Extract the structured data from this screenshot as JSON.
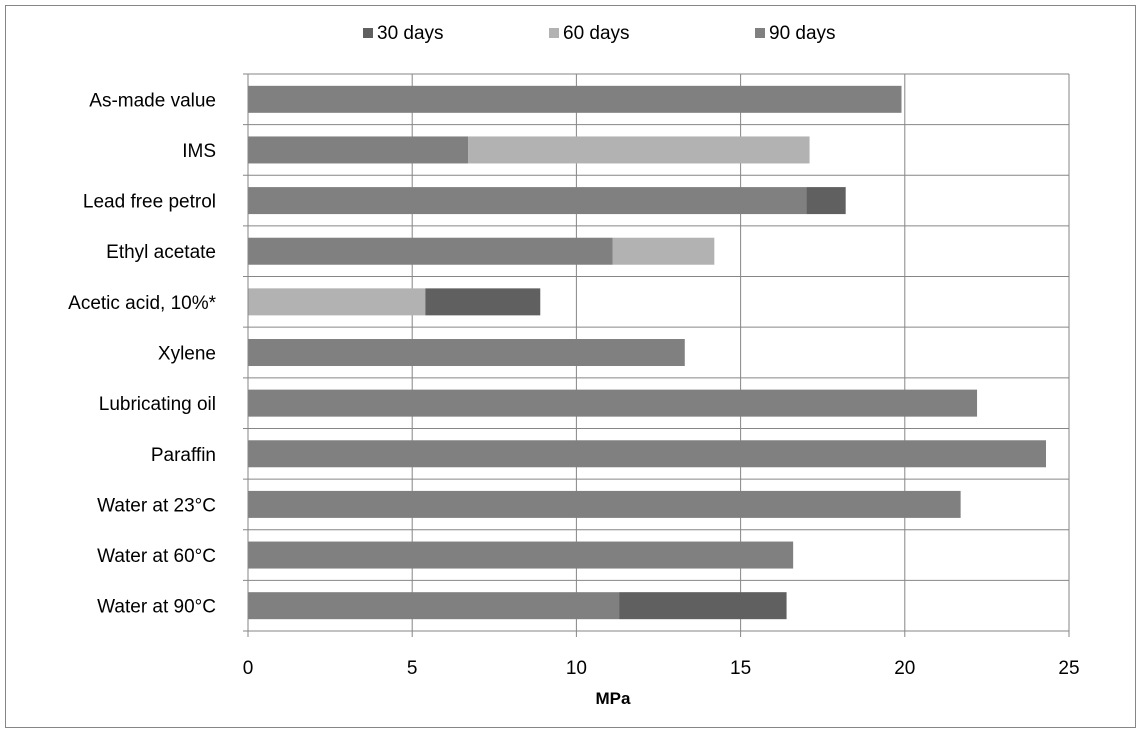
{
  "chart_data": {
    "type": "bar",
    "orientation": "horizontal",
    "stacked": true,
    "title": "",
    "xlabel": "MPa",
    "ylabel": "",
    "xlim": [
      0,
      25
    ],
    "x_ticks": [
      "0",
      "5",
      "10",
      "15",
      "20",
      "25"
    ],
    "grid": true,
    "legend_position": "top",
    "categories": [
      "As-made value",
      "IMS",
      "Lead free petrol",
      "Ethyl acetate",
      "Acetic acid, 10%*",
      "Xylene",
      "Lubricating oil",
      "Paraffin",
      "Water at 23°C",
      "Water at 60°C",
      "Water at 90°C"
    ],
    "bars": [
      [
        {
          "series": 2,
          "value": 19.9
        }
      ],
      [
        {
          "series": 2,
          "value": 6.7
        },
        {
          "series": 1,
          "value": 10.4
        }
      ],
      [
        {
          "series": 2,
          "value": 17.0
        },
        {
          "series": 0,
          "value": 1.2
        }
      ],
      [
        {
          "series": 2,
          "value": 11.1
        },
        {
          "series": 1,
          "value": 3.1
        }
      ],
      [
        {
          "series": 1,
          "value": 5.4
        },
        {
          "series": 0,
          "value": 3.5
        }
      ],
      [
        {
          "series": 2,
          "value": 13.3
        }
      ],
      [
        {
          "series": 2,
          "value": 22.2
        }
      ],
      [
        {
          "series": 2,
          "value": 24.3
        }
      ],
      [
        {
          "series": 2,
          "value": 21.7
        }
      ],
      [
        {
          "series": 2,
          "value": 16.6
        }
      ],
      [
        {
          "series": 2,
          "value": 11.3
        },
        {
          "series": 0,
          "value": 5.1
        }
      ]
    ],
    "series": [
      {
        "name": "30 days",
        "color": "#606060"
      },
      {
        "name": "60 days",
        "color": "#b2b2b2"
      },
      {
        "name": "90 days",
        "color": "#808080"
      }
    ]
  }
}
